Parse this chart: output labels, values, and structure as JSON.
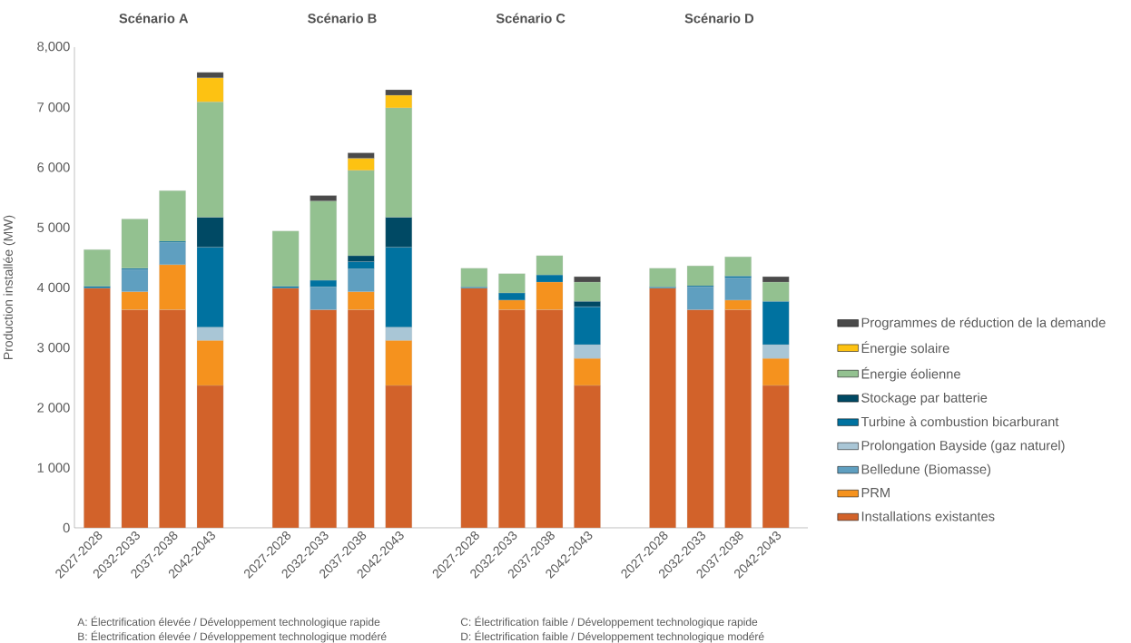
{
  "chart_data": {
    "type": "bar",
    "stacked": true,
    "ylabel": "Production installée (MW)",
    "categories": [
      "2027-2028",
      "2032-2033",
      "2037-2038",
      "2042-2043",
      null,
      "2027-2028",
      "2032-2033",
      "2037-2038",
      "2042-2043",
      null,
      "2027-2028",
      "2032-2033",
      "2037-2038",
      "2042-2043",
      null,
      "2027-2028",
      "2032-2033",
      "2037-2038",
      "2042-2043"
    ],
    "series": [
      {
        "name": "Installations existantes",
        "color": "#d2622a",
        "values": [
          3990,
          3630,
          3630,
          2370,
          null,
          3990,
          3630,
          3630,
          2370,
          null,
          3990,
          3630,
          3630,
          2370,
          null,
          3990,
          3630,
          3630,
          2370
        ]
      },
      {
        "name": "PRM",
        "color": "#f5921e",
        "values": [
          null,
          300,
          750,
          750,
          null,
          null,
          null,
          300,
          750,
          null,
          null,
          160,
          460,
          450,
          null,
          null,
          null,
          160,
          450
        ]
      },
      {
        "name": "Belledune (Biomasse)",
        "color": "#5f9fc0",
        "values": [
          null,
          370,
          370,
          null,
          null,
          null,
          380,
          380,
          null,
          null,
          null,
          null,
          null,
          null,
          null,
          null,
          380,
          370,
          null
        ]
      },
      {
        "name": "Prolongation Bayside (gaz naturel)",
        "color": "#a9c6d6",
        "values": [
          null,
          null,
          null,
          220,
          null,
          null,
          null,
          null,
          220,
          null,
          null,
          null,
          null,
          230,
          null,
          null,
          null,
          null,
          230
        ]
      },
      {
        "name": "Turbine à combustion bicarburant",
        "color": "#0072a0",
        "values": [
          30,
          20,
          20,
          1330,
          null,
          30,
          110,
          120,
          1330,
          null,
          20,
          120,
          120,
          630,
          null,
          20,
          20,
          30,
          720
        ]
      },
      {
        "name": "Stockage par batterie",
        "color": "#004964",
        "values": [
          null,
          null,
          null,
          500,
          null,
          null,
          null,
          100,
          500,
          null,
          null,
          null,
          null,
          90,
          null,
          null,
          null,
          null,
          null
        ]
      },
      {
        "name": "Énergie éolienne",
        "color": "#93c190",
        "values": [
          610,
          820,
          840,
          1920,
          null,
          920,
          1320,
          1420,
          1820,
          null,
          310,
          320,
          320,
          320,
          null,
          310,
          330,
          320,
          320
        ]
      },
      {
        "name": "Énergie solaire",
        "color": "#fdc212",
        "values": [
          null,
          null,
          null,
          400,
          null,
          null,
          null,
          200,
          210,
          null,
          null,
          null,
          null,
          null,
          null,
          null,
          null,
          null,
          null
        ]
      },
      {
        "name": "Programmes de réduction de la demande",
        "color": "#4a4a4a",
        "values": [
          null,
          null,
          null,
          90,
          null,
          null,
          90,
          90,
          90,
          null,
          null,
          null,
          null,
          90,
          null,
          null,
          null,
          null,
          90
        ]
      }
    ],
    "ylim": [
      0,
      8000
    ],
    "yticks": [
      0,
      {
        "value": 1000,
        "label": "1 000"
      },
      {
        "value": 2000,
        "label": "2 000"
      },
      {
        "value": 3000,
        "label": "3 000"
      },
      {
        "value": 4000,
        "label": "4 000"
      },
      {
        "value": 5000,
        "label": "5 000"
      },
      {
        "value": 6000,
        "label": "6 000"
      },
      {
        "value": 7000,
        "label": "7 000"
      },
      {
        "value": 8000,
        "label": "8,000"
      }
    ],
    "legend": "right",
    "annotations": [
      "Scénario A",
      "Scénario B",
      "Scénario C",
      "Scénario D",
      "A: Électrification élevée / Développement technologique rapide",
      "B: Électrification élevée / Développement technologique modéré",
      "C: Électrification faible / Développement technologique rapide",
      "D: Électrification faible / Développement technologique modéré"
    ]
  }
}
